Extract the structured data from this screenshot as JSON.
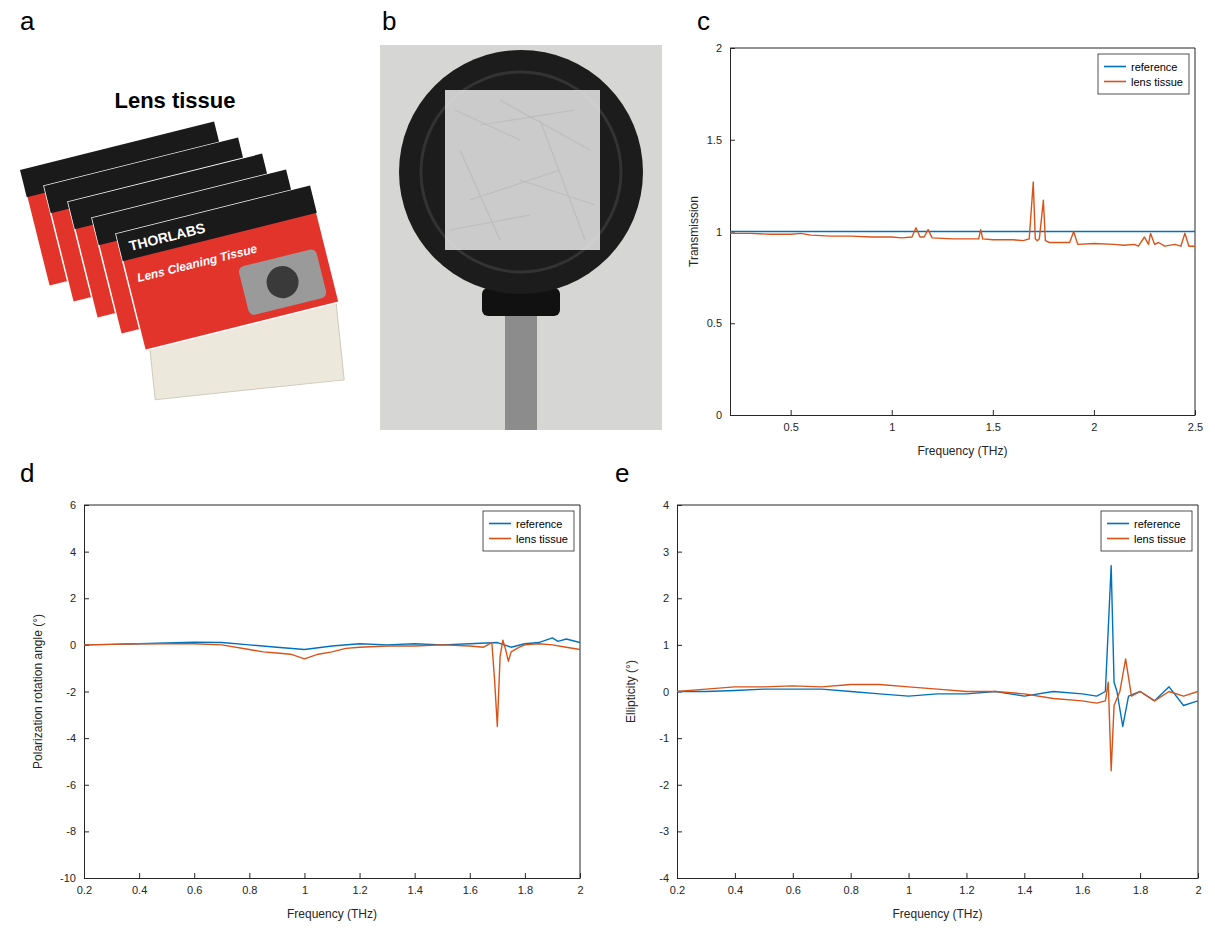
{
  "chart_data": [
    {
      "type": "line",
      "panel_label": "c",
      "x_label": "Frequency (THz)",
      "y_label": "Transmission",
      "xlim": [
        0.2,
        2.5
      ],
      "xticks": [
        0.5,
        1,
        1.5,
        2,
        2.5
      ],
      "ylim": [
        0,
        2
      ],
      "yticks": [
        0,
        0.5,
        1,
        1.5,
        2
      ],
      "grid": false,
      "legend": "upper right",
      "series": [
        {
          "name": "reference",
          "color": "#0072bd",
          "x": [
            0.2,
            2.5
          ],
          "values": [
            1,
            1
          ]
        },
        {
          "name": "lens tissue",
          "color": "#d95319",
          "x": [
            0.2,
            0.3,
            0.4,
            0.5,
            0.55,
            0.6,
            0.7,
            0.8,
            0.9,
            1.0,
            1.05,
            1.1,
            1.12,
            1.14,
            1.16,
            1.18,
            1.2,
            1.3,
            1.4,
            1.43,
            1.44,
            1.45,
            1.5,
            1.6,
            1.65,
            1.68,
            1.7,
            1.71,
            1.72,
            1.73,
            1.75,
            1.76,
            1.78,
            1.8,
            1.85,
            1.88,
            1.9,
            1.92,
            2.0,
            2.1,
            2.15,
            2.2,
            2.22,
            2.25,
            2.27,
            2.28,
            2.3,
            2.32,
            2.35,
            2.4,
            2.43,
            2.45,
            2.47,
            2.5
          ],
          "values": [
            0.99,
            0.99,
            0.985,
            0.985,
            0.99,
            0.98,
            0.975,
            0.975,
            0.97,
            0.97,
            0.965,
            0.97,
            1.02,
            0.97,
            0.97,
            1.01,
            0.965,
            0.96,
            0.96,
            0.96,
            1.01,
            0.96,
            0.955,
            0.955,
            0.95,
            0.96,
            1.27,
            0.96,
            0.95,
            0.96,
            1.17,
            0.95,
            0.94,
            0.94,
            0.94,
            0.94,
            1.0,
            0.93,
            0.935,
            0.93,
            0.925,
            0.93,
            0.92,
            0.97,
            0.93,
            0.99,
            0.93,
            0.94,
            0.92,
            0.93,
            0.92,
            0.99,
            0.92,
            0.92
          ]
        }
      ]
    },
    {
      "type": "line",
      "panel_label": "d",
      "x_label": "Frequency (THz)",
      "y_label": "Polarization rotation angle (°)",
      "xlim": [
        0.2,
        2
      ],
      "xticks": [
        0.2,
        0.4,
        0.6,
        0.8,
        1,
        1.2,
        1.4,
        1.6,
        1.8,
        2
      ],
      "ylim": [
        -10,
        6
      ],
      "yticks": [
        -10,
        -8,
        -6,
        -4,
        -2,
        0,
        2,
        4,
        6
      ],
      "grid": false,
      "legend": "upper right",
      "series": [
        {
          "name": "reference",
          "color": "#0072bd",
          "x": [
            0.2,
            0.3,
            0.4,
            0.5,
            0.6,
            0.7,
            0.8,
            0.9,
            1.0,
            1.1,
            1.2,
            1.3,
            1.4,
            1.5,
            1.6,
            1.7,
            1.75,
            1.8,
            1.85,
            1.9,
            1.92,
            1.95,
            2.0
          ],
          "values": [
            0,
            0.02,
            0.05,
            0.08,
            0.12,
            0.1,
            0.0,
            -0.1,
            -0.2,
            -0.05,
            0.05,
            0.0,
            0.05,
            0.0,
            0.05,
            0.1,
            -0.1,
            0.05,
            0.1,
            0.3,
            0.15,
            0.25,
            0.1
          ]
        },
        {
          "name": "lens tissue",
          "color": "#d95319",
          "x": [
            0.2,
            0.3,
            0.4,
            0.5,
            0.6,
            0.7,
            0.8,
            0.85,
            0.9,
            0.95,
            1.0,
            1.05,
            1.1,
            1.15,
            1.2,
            1.3,
            1.4,
            1.5,
            1.6,
            1.65,
            1.68,
            1.69,
            1.7,
            1.71,
            1.72,
            1.73,
            1.74,
            1.75,
            1.78,
            1.8,
            1.85,
            1.9,
            1.95,
            2.0
          ],
          "values": [
            0,
            0.02,
            0.05,
            0.05,
            0.05,
            0.0,
            -0.2,
            -0.3,
            -0.35,
            -0.4,
            -0.6,
            -0.4,
            -0.3,
            -0.15,
            -0.1,
            -0.05,
            -0.05,
            0.0,
            -0.05,
            -0.1,
            0.1,
            -1.5,
            -3.5,
            -0.5,
            0.2,
            -0.2,
            -0.7,
            -0.3,
            -0.1,
            0.0,
            0.05,
            0.0,
            -0.1,
            -0.2
          ]
        }
      ]
    },
    {
      "type": "line",
      "panel_label": "e",
      "x_label": "Frequency (THz)",
      "y_label": "Ellipticity (°)",
      "xlim": [
        0.2,
        2
      ],
      "xticks": [
        0.2,
        0.4,
        0.6,
        0.8,
        1,
        1.2,
        1.4,
        1.6,
        1.8,
        2
      ],
      "ylim": [
        -4,
        4
      ],
      "yticks": [
        -4,
        -3,
        -2,
        -1,
        0,
        1,
        2,
        3,
        4
      ],
      "grid": false,
      "legend": "upper right",
      "series": [
        {
          "name": "reference",
          "color": "#0072bd",
          "x": [
            0.2,
            0.3,
            0.4,
            0.5,
            0.6,
            0.7,
            0.8,
            0.9,
            1.0,
            1.1,
            1.2,
            1.3,
            1.4,
            1.5,
            1.6,
            1.65,
            1.68,
            1.7,
            1.71,
            1.72,
            1.74,
            1.76,
            1.8,
            1.85,
            1.9,
            1.95,
            2.0
          ],
          "values": [
            0,
            0.0,
            0.02,
            0.05,
            0.05,
            0.05,
            0.0,
            -0.05,
            -0.1,
            -0.05,
            -0.05,
            0.0,
            -0.1,
            0.0,
            -0.05,
            -0.1,
            0.0,
            2.7,
            0.2,
            0.0,
            -0.75,
            -0.1,
            0.0,
            -0.2,
            0.1,
            -0.3,
            -0.2
          ]
        },
        {
          "name": "lens tissue",
          "color": "#d95319",
          "x": [
            0.2,
            0.3,
            0.4,
            0.5,
            0.6,
            0.7,
            0.8,
            0.9,
            1.0,
            1.1,
            1.2,
            1.3,
            1.4,
            1.5,
            1.6,
            1.65,
            1.68,
            1.69,
            1.7,
            1.71,
            1.73,
            1.75,
            1.77,
            1.8,
            1.85,
            1.9,
            1.95,
            2.0
          ],
          "values": [
            0,
            0.05,
            0.1,
            0.1,
            0.12,
            0.1,
            0.15,
            0.15,
            0.1,
            0.05,
            0.0,
            0.0,
            -0.05,
            -0.15,
            -0.2,
            -0.25,
            -0.2,
            0.2,
            -1.7,
            -0.3,
            0.0,
            0.7,
            -0.1,
            0.0,
            -0.2,
            0.0,
            -0.1,
            0.0
          ]
        }
      ]
    }
  ],
  "photos": [
    {
      "panel_label": "a",
      "title": "Lens tissue",
      "texts": [
        "THORLABS",
        "Lens Cleaning Tissue"
      ]
    },
    {
      "panel_label": "b"
    }
  ]
}
